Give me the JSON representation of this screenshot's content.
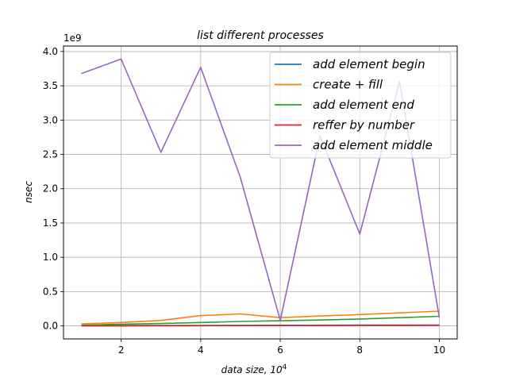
{
  "chart_data": {
    "type": "line",
    "title": "list different processes",
    "xlabel": "data size, 10",
    "xlabel_exponent": "4",
    "ylabel": "nsec",
    "y_offset_label": "1e9",
    "xlim": [
      0.55,
      10.45
    ],
    "ylim": [
      -0.19,
      4.08
    ],
    "x_ticks": [
      2,
      4,
      6,
      8,
      10
    ],
    "x_tick_labels": [
      "2",
      "4",
      "6",
      "8",
      "10"
    ],
    "y_ticks": [
      0.0,
      0.5,
      1.0,
      1.5,
      2.0,
      2.5,
      3.0,
      3.5,
      4.0
    ],
    "y_tick_labels": [
      "0.0",
      "0.5",
      "1.0",
      "1.5",
      "2.0",
      "2.5",
      "3.0",
      "3.5",
      "4.0"
    ],
    "grid": true,
    "legend_position": "top-right",
    "x": [
      1,
      2,
      3,
      4,
      5,
      6,
      7,
      8,
      9,
      10
    ],
    "series": [
      {
        "name": "add element begin",
        "color": "#1f77b4",
        "values": [
          0.004,
          0.005,
          0.006,
          0.007,
          0.008,
          0.009,
          0.01,
          0.011,
          0.012,
          0.013
        ]
      },
      {
        "name": "create + fill",
        "color": "#ff7f0e",
        "values": [
          0.03,
          0.05,
          0.08,
          0.15,
          0.175,
          0.12,
          0.145,
          0.165,
          0.19,
          0.215
        ]
      },
      {
        "name": "add element end",
        "color": "#2ca02c",
        "values": [
          0.01,
          0.025,
          0.035,
          0.05,
          0.065,
          0.075,
          0.085,
          0.1,
          0.12,
          0.14
        ]
      },
      {
        "name": "reffer by number",
        "color": "#d62728",
        "values": [
          0.0,
          0.0,
          0.002,
          0.003,
          0.004,
          0.005,
          0.006,
          0.007,
          0.008,
          0.009
        ]
      },
      {
        "name": "add element middle",
        "color": "#9467bd",
        "values": [
          3.68,
          3.89,
          2.53,
          3.77,
          2.16,
          0.08,
          2.77,
          1.34,
          3.56,
          0.12
        ]
      }
    ]
  }
}
